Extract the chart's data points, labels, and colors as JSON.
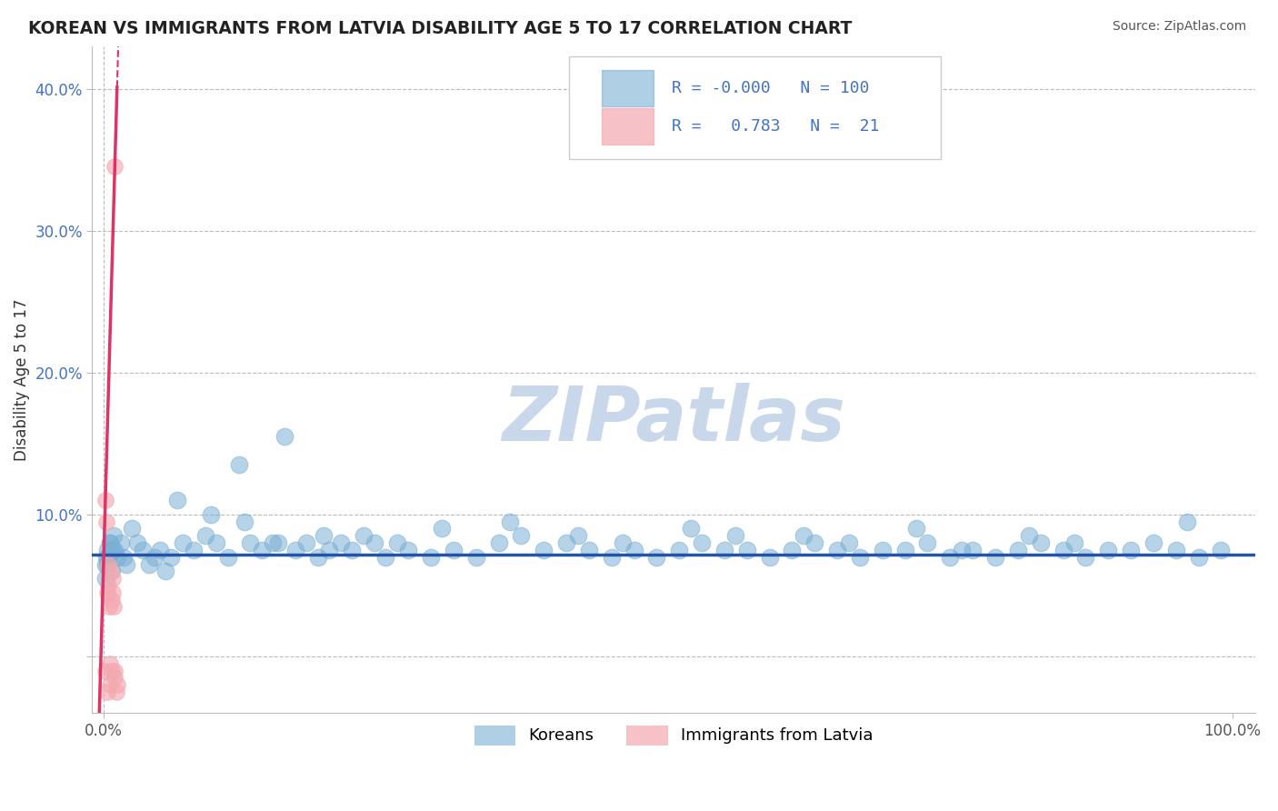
{
  "title": "KOREAN VS IMMIGRANTS FROM LATVIA DISABILITY AGE 5 TO 17 CORRELATION CHART",
  "source": "Source: ZipAtlas.com",
  "ylabel": "Disability Age 5 to 17",
  "xlim": [
    -1,
    102
  ],
  "ylim": [
    -4,
    43
  ],
  "yticks": [
    0,
    10,
    20,
    30,
    40
  ],
  "ytick_labels": [
    "",
    "10.0%",
    "20.0%",
    "30.0%",
    "40.0%"
  ],
  "xtick_positions": [
    0,
    100
  ],
  "xtick_labels": [
    "0.0%",
    "100.0%"
  ],
  "legend_R1": "-0.000",
  "legend_N1": "100",
  "legend_R2": "0.783",
  "legend_N2": "21",
  "blue_color": "#7bafd4",
  "pink_color": "#f4a9b0",
  "trend_blue_color": "#2255aa",
  "trend_pink_color": "#dd3366",
  "grid_color": "#bbbbbb",
  "bg_color": "#ffffff",
  "watermark": "ZIPatlas",
  "watermark_color": "#c8d8ea",
  "blue_trend_y": 7.2,
  "pink_slope": 28.0,
  "pink_intercept": 6.5,
  "blue_scatter_x": [
    0.4,
    0.3,
    0.6,
    0.8,
    0.2,
    0.5,
    0.7,
    0.9,
    1.0,
    1.2,
    1.5,
    1.8,
    2.0,
    2.5,
    3.0,
    3.5,
    4.0,
    4.5,
    5.0,
    5.5,
    6.0,
    7.0,
    8.0,
    9.0,
    10.0,
    11.0,
    12.0,
    13.0,
    14.0,
    15.0,
    16.0,
    17.0,
    18.0,
    19.0,
    20.0,
    21.0,
    22.0,
    23.0,
    24.0,
    25.0,
    27.0,
    29.0,
    31.0,
    33.0,
    35.0,
    37.0,
    39.0,
    41.0,
    43.0,
    45.0,
    47.0,
    49.0,
    51.0,
    53.0,
    55.0,
    57.0,
    59.0,
    61.0,
    63.0,
    65.0,
    67.0,
    69.0,
    71.0,
    73.0,
    75.0,
    77.0,
    79.0,
    81.0,
    83.0,
    85.0,
    87.0,
    89.0,
    91.0,
    93.0,
    95.0,
    97.0,
    99.0,
    6.5,
    9.5,
    12.5,
    15.5,
    19.5,
    30.0,
    42.0,
    52.0,
    62.0,
    72.0,
    82.0,
    26.0,
    36.0,
    46.0,
    56.0,
    66.0,
    76.0,
    86.0,
    96.0,
    0.15,
    0.25,
    0.35,
    0.55,
    0.65
  ],
  "blue_scatter_y": [
    7.0,
    6.5,
    8.0,
    7.5,
    5.5,
    7.0,
    6.0,
    8.5,
    7.5,
    7.0,
    8.0,
    7.0,
    6.5,
    9.0,
    8.0,
    7.5,
    6.5,
    7.0,
    7.5,
    6.0,
    7.0,
    8.0,
    7.5,
    8.5,
    8.0,
    7.0,
    13.5,
    8.0,
    7.5,
    8.0,
    15.5,
    7.5,
    8.0,
    7.0,
    7.5,
    8.0,
    7.5,
    8.5,
    8.0,
    7.0,
    7.5,
    7.0,
    7.5,
    7.0,
    8.0,
    8.5,
    7.5,
    8.0,
    7.5,
    7.0,
    7.5,
    7.0,
    7.5,
    8.0,
    7.5,
    7.5,
    7.0,
    7.5,
    8.0,
    7.5,
    7.0,
    7.5,
    7.5,
    8.0,
    7.0,
    7.5,
    7.0,
    7.5,
    8.0,
    7.5,
    7.0,
    7.5,
    7.5,
    8.0,
    7.5,
    7.0,
    7.5,
    11.0,
    10.0,
    9.5,
    8.0,
    8.5,
    9.0,
    8.5,
    9.0,
    8.5,
    9.0,
    8.5,
    8.0,
    9.5,
    8.0,
    8.5,
    8.0,
    7.5,
    8.0,
    9.5,
    6.5,
    7.0,
    7.5,
    8.0,
    7.5
  ],
  "pink_scatter_x": [
    0.15,
    0.2,
    0.25,
    0.3,
    0.35,
    0.4,
    0.45,
    0.5,
    0.55,
    0.6,
    0.65,
    0.7,
    0.75,
    0.8,
    0.85,
    0.9,
    0.95,
    1.0,
    1.1,
    1.2,
    1.0
  ],
  "pink_scatter_y": [
    11.0,
    -1.0,
    9.5,
    -2.5,
    4.5,
    5.0,
    6.5,
    3.5,
    -0.5,
    -2.0,
    6.0,
    -1.0,
    4.0,
    5.5,
    4.5,
    3.5,
    -1.5,
    -1.0,
    -2.5,
    -2.0,
    34.5
  ]
}
